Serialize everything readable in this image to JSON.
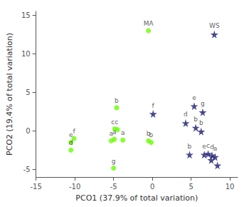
{
  "chart_data": {
    "type": "scatter",
    "xlabel": "PCO1 (37.9% of total variation)",
    "ylabel": "PCO2 (19.4% of total variation)",
    "xlim": [
      -15,
      11
    ],
    "ylim": [
      -6,
      15.5
    ],
    "xticks": [
      -15,
      -10,
      -5,
      0,
      5,
      10
    ],
    "yticks": [
      -5,
      0,
      5,
      10,
      15
    ],
    "grid": false,
    "series": [
      {
        "color": "#66ff00",
        "marker": "circle",
        "x": [
          -10.5,
          -10.1,
          -10.5,
          -5.3,
          -4.9,
          -4.85,
          -4.5,
          -3.8,
          -0.5,
          -0.15,
          -5.0,
          -4.6,
          -0.5
        ],
        "y": [
          -1.5,
          -1.0,
          -2.5,
          -1.3,
          -1.1,
          0.25,
          0.15,
          -1.2,
          -1.3,
          -1.5,
          -4.85,
          3.0,
          13.0
        ],
        "labels": [
          "e",
          "f",
          "d",
          "a",
          "a",
          "cc",
          null,
          "a",
          "b",
          "b",
          "g",
          "b",
          "MA"
        ]
      },
      {
        "color": "#1a1a6e",
        "marker": "star",
        "x": [
          8.0,
          0.1,
          4.3,
          5.4,
          6.5,
          5.6,
          6.3,
          4.8,
          6.7,
          7.2,
          7.7,
          8.1,
          8.4,
          7.6
        ],
        "y": [
          12.5,
          2.2,
          1.0,
          3.2,
          2.4,
          0.4,
          -0.1,
          -3.1,
          -3.1,
          -3.0,
          -3.2,
          -3.4,
          -4.5,
          -3.8
        ],
        "labels": [
          "WS",
          "f",
          "d",
          "e",
          "g",
          "b",
          "b",
          "b",
          "e",
          "c",
          "d",
          "a",
          null,
          null
        ]
      }
    ]
  }
}
